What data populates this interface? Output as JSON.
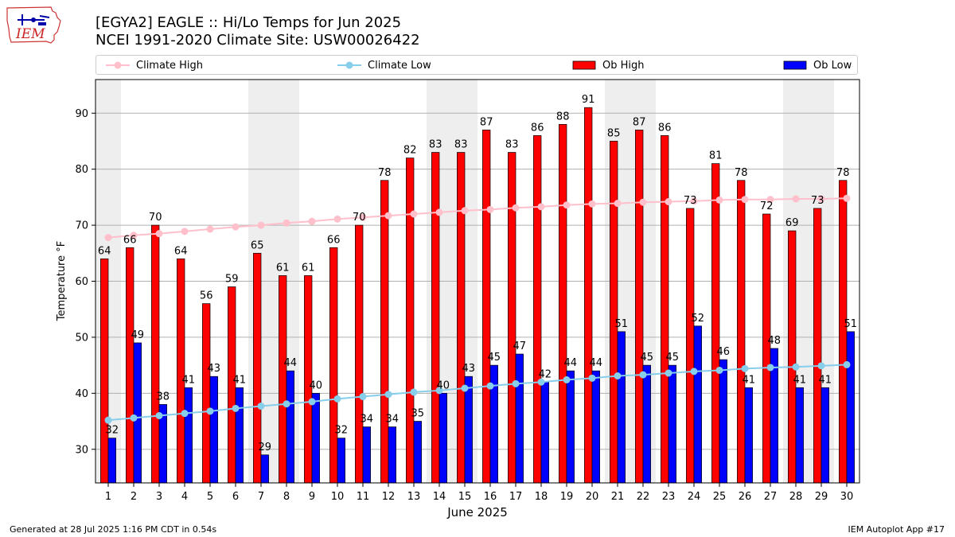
{
  "header": {
    "title_line1": "[EGYA2] EAGLE :: Hi/Lo Temps for Jun 2025",
    "title_line2": "NCEI 1991-2020 Climate Site: USW00026422"
  },
  "logo": {
    "text": "IEM"
  },
  "footer": {
    "left": "Generated at 28 Jul 2025 1:16 PM CDT in 0.54s",
    "right": "IEM Autoplot App #17"
  },
  "colors": {
    "ob_high": "#ff0000",
    "ob_low": "#0000ff",
    "climate_high": "#ffc0cb",
    "climate_low": "#87ceeb",
    "weekend_shade": "#eeeeee",
    "grid": "#b0b0b0"
  },
  "chart_data": {
    "type": "bar",
    "xlabel": "June 2025",
    "ylabel": "Temperature °F",
    "ylim": [
      24,
      96
    ],
    "yticks": [
      30,
      40,
      50,
      60,
      70,
      80,
      90
    ],
    "grid": "horizontal",
    "legend_placement": "top",
    "categories": [
      "1",
      "2",
      "3",
      "4",
      "5",
      "6",
      "7",
      "8",
      "9",
      "10",
      "11",
      "12",
      "13",
      "14",
      "15",
      "16",
      "17",
      "18",
      "19",
      "20",
      "21",
      "22",
      "23",
      "24",
      "25",
      "26",
      "27",
      "28",
      "29",
      "30"
    ],
    "shaded_days": [
      "1",
      "7",
      "8",
      "14",
      "15",
      "21",
      "22",
      "28",
      "29"
    ],
    "series": [
      {
        "name": "Climate High",
        "kind": "line",
        "values": [
          67.8,
          68.2,
          68.5,
          68.9,
          69.3,
          69.7,
          70.0,
          70.4,
          70.7,
          71.1,
          71.4,
          71.7,
          72.0,
          72.3,
          72.6,
          72.8,
          73.1,
          73.3,
          73.6,
          73.8,
          73.9,
          74.1,
          74.2,
          74.3,
          74.5,
          74.6,
          74.6,
          74.7,
          74.7,
          74.8
        ]
      },
      {
        "name": "Climate Low",
        "kind": "line",
        "values": [
          35.2,
          35.6,
          36.0,
          36.4,
          36.8,
          37.3,
          37.7,
          38.1,
          38.5,
          39.0,
          39.4,
          39.8,
          40.2,
          40.5,
          40.9,
          41.3,
          41.7,
          42.0,
          42.4,
          42.7,
          43.1,
          43.3,
          43.6,
          43.9,
          44.1,
          44.4,
          44.6,
          44.7,
          44.9,
          45.1
        ]
      },
      {
        "name": "Ob High",
        "kind": "bar",
        "values": [
          64,
          66,
          70,
          64,
          56,
          59,
          65,
          61,
          61,
          66,
          70,
          78,
          82,
          83,
          83,
          87,
          83,
          86,
          88,
          91,
          85,
          87,
          86,
          73,
          81,
          78,
          72,
          69,
          73,
          78
        ]
      },
      {
        "name": "Ob Low",
        "kind": "bar",
        "values": [
          32,
          49,
          38,
          41,
          43,
          41,
          29,
          44,
          40,
          32,
          34,
          34,
          35,
          40,
          43,
          45,
          47,
          42,
          44,
          44,
          51,
          45,
          45,
          52,
          46,
          41,
          48,
          41,
          41,
          51
        ]
      }
    ]
  }
}
